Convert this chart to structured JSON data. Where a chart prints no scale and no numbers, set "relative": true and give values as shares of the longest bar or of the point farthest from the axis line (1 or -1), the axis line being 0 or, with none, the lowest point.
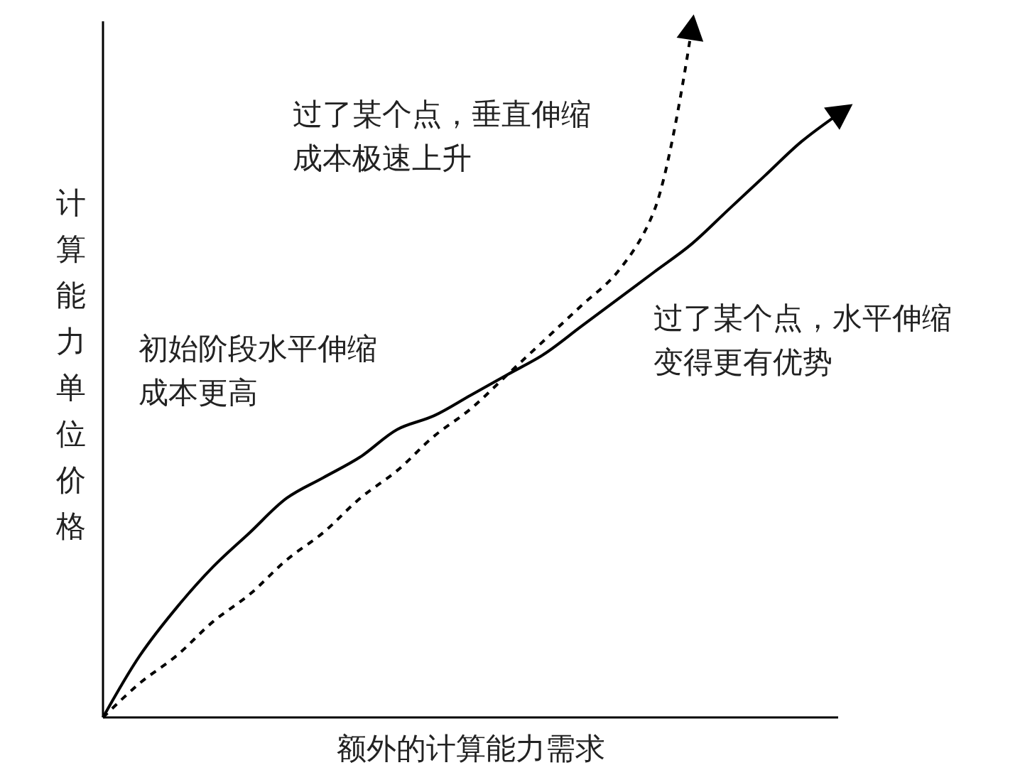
{
  "chart_data": {
    "type": "line",
    "relative": true,
    "xlabel": "额外的计算能力需求",
    "ylabel": "计算能力单位价格",
    "categories": [
      null,
      null,
      null,
      null,
      null,
      null,
      null,
      null,
      null,
      null,
      null,
      null,
      null,
      null,
      null,
      null,
      null,
      null,
      null,
      null,
      null
    ],
    "series": [
      {
        "color": "#000000",
        "line_style": "solid",
        "values": [
          0,
          0.09,
          0.16,
          0.22,
          0.27,
          0.32,
          0.35,
          0.38,
          0.42,
          0.44,
          0.47,
          0.5,
          0.53,
          0.57,
          0.61,
          0.65,
          0.69,
          0.74,
          0.79,
          0.84,
          0.88
        ]
      },
      {
        "color": "#000000",
        "line_style": "dashed",
        "values": [
          0,
          0.05,
          0.09,
          0.14,
          0.18,
          0.23,
          0.27,
          0.32,
          0.36,
          0.41,
          0.45,
          0.5,
          0.55,
          0.6,
          0.65,
          0.74,
          1,
          null,
          null,
          null,
          null
        ]
      }
    ],
    "annotations": [
      "过了某个点，垂直伸缩成本极速上升",
      "初始阶段水平伸缩成本更高",
      "过了某个点，水平伸缩变得更有优势"
    ],
    "grid": false,
    "marker": "none"
  }
}
